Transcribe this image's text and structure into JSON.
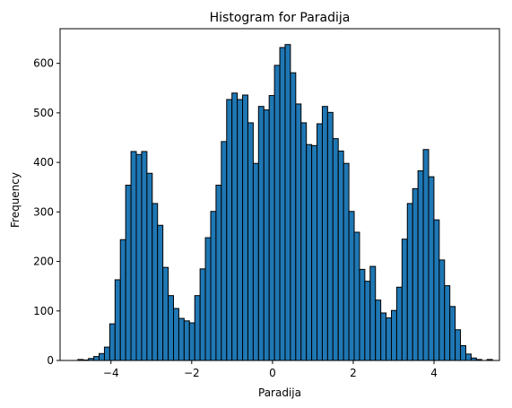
{
  "chart_data": {
    "type": "bar",
    "title": "Histogram for Paradija",
    "xlabel": "Paradija",
    "ylabel": "Frequency",
    "xlim": [
      -5.26,
      5.62
    ],
    "ylim": [
      0,
      670
    ],
    "xticks": [
      -4,
      -2,
      0,
      2,
      4
    ],
    "xtick_labels": [
      "−4",
      "−2",
      "0",
      "2",
      "4"
    ],
    "yticks": [
      0,
      100,
      200,
      300,
      400,
      500,
      600
    ],
    "ytick_labels": [
      "0",
      "100",
      "200",
      "300",
      "400",
      "500",
      "600"
    ],
    "grid": false,
    "bar_color": "#1f77b4",
    "edge_color": "#000000",
    "bins_start": -4.82,
    "bin_width": 0.1316,
    "values": [
      2,
      1,
      4,
      8,
      14,
      27,
      74,
      163,
      244,
      354,
      422,
      416,
      422,
      378,
      317,
      273,
      188,
      131,
      105,
      85,
      80,
      76,
      131,
      185,
      248,
      301,
      354,
      442,
      527,
      540,
      527,
      536,
      480,
      398,
      513,
      506,
      535,
      596,
      632,
      638,
      581,
      518,
      480,
      436,
      434,
      478,
      513,
      501,
      448,
      423,
      398,
      301,
      259,
      184,
      160,
      190,
      122,
      96,
      86,
      101,
      148,
      245,
      317,
      347,
      383,
      426,
      371,
      284,
      203,
      151,
      109,
      62,
      30,
      13,
      5,
      2,
      0,
      2
    ]
  }
}
